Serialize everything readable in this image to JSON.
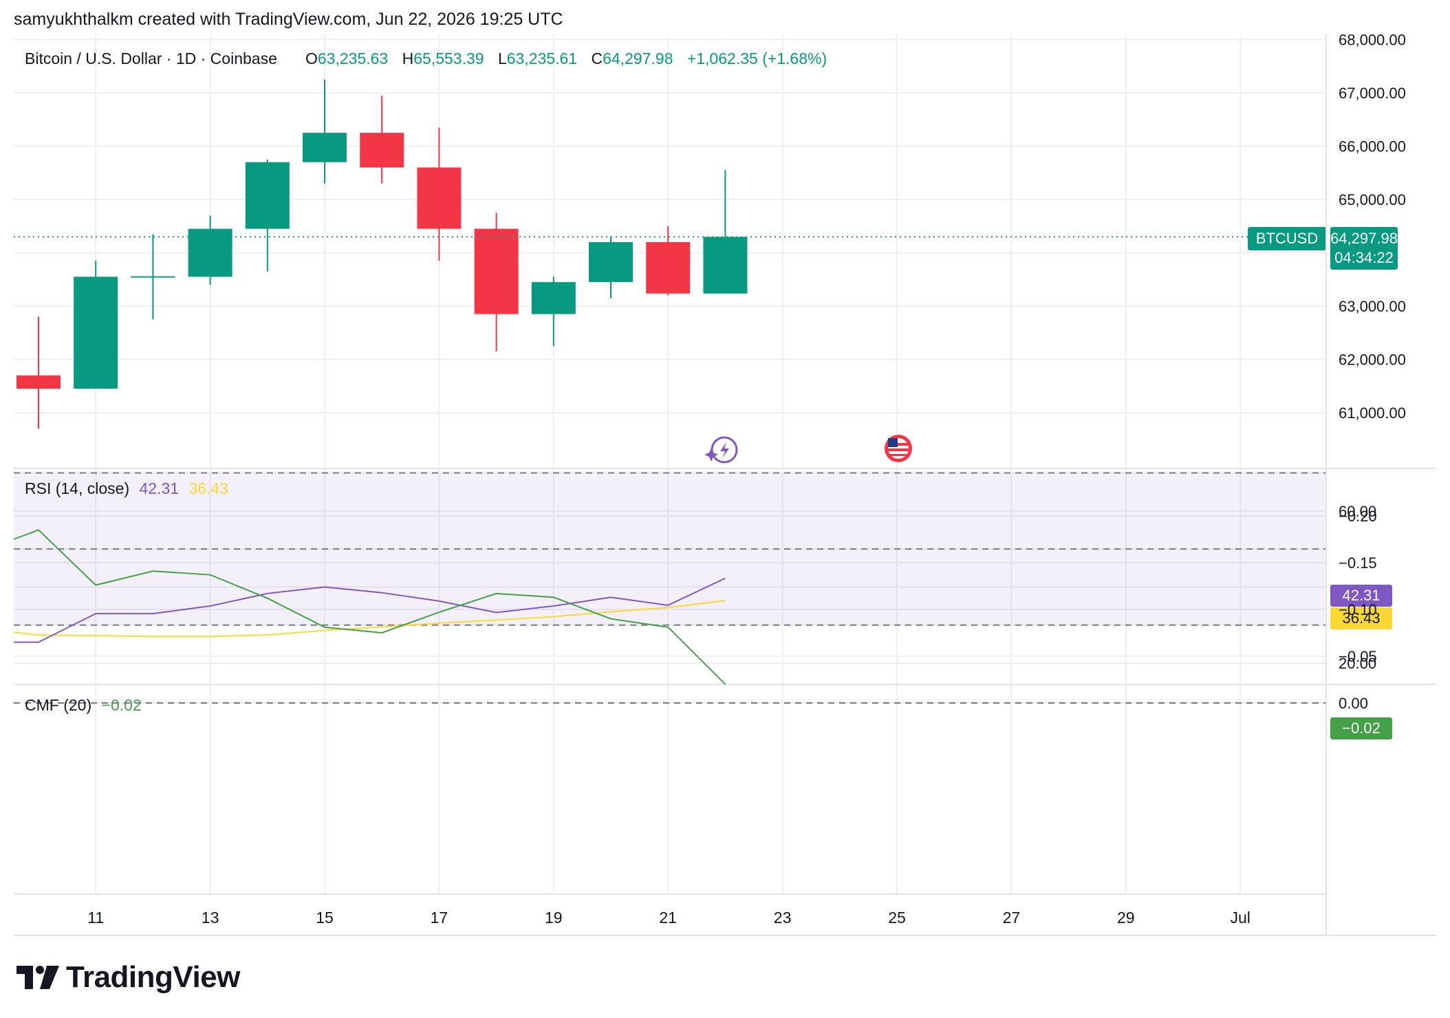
{
  "header": {
    "attribution": "samyukhthalkm created with TradingView.com, Jun 22, 2026 19:25 UTC"
  },
  "legend": {
    "symbol": "Bitcoin / U.S. Dollar · 1D · Coinbase",
    "o_label": "O",
    "o_value": "63,235.63",
    "h_label": "H",
    "h_value": "65,553.39",
    "l_label": "L",
    "l_value": "63,235.61",
    "c_label": "C",
    "c_value": "64,297.98",
    "change": "+1,062.35 (+1.68%)"
  },
  "price_tag": {
    "symbol": "BTCUSD",
    "price": "64,297.98",
    "countdown": "04:34:22"
  },
  "rsi_legend": {
    "name": "RSI (14, close)",
    "rsi": "42.31",
    "ma": "36.43"
  },
  "cmf_legend": {
    "name": "CMF (20)",
    "value": "−0.02"
  },
  "brand": {
    "name": "TradingView"
  },
  "colors": {
    "up": "#089981",
    "down": "#f23645",
    "rsi": "#7e57c2",
    "rsi_ma": "#fdd835",
    "cmf": "#43a047",
    "rsi_band": "#7e57c2",
    "grid": "#eeeff2",
    "text": "#131722"
  },
  "icons": [
    "tradingview-logo-icon",
    "economic-event-icon",
    "us-flag-icon"
  ],
  "chart_data": [
    {
      "type": "candlestick",
      "title": "Bitcoin / U.S. Dollar · 1D · Coinbase",
      "x_tick_labels": [
        "11",
        "13",
        "15",
        "17",
        "19",
        "21",
        "23",
        "25",
        "27",
        "29",
        "Jul"
      ],
      "y_tick_labels": [
        "61,000.00",
        "62,000.00",
        "63,000.00",
        "65,000.00",
        "66,000.00",
        "67,000.00",
        "68,000.00"
      ],
      "ylim": [
        60000,
        68000
      ],
      "current_price": 64297.98,
      "candles": [
        {
          "date": "Jun 10",
          "o": 61700,
          "h": 62800,
          "l": 60700,
          "c": 61450
        },
        {
          "date": "Jun 11",
          "o": 61450,
          "h": 63850,
          "l": 61450,
          "c": 63550
        },
        {
          "date": "Jun 12",
          "o": 63550,
          "h": 64350,
          "l": 62750,
          "c": 63560
        },
        {
          "date": "Jun 13",
          "o": 63550,
          "h": 64700,
          "l": 63400,
          "c": 64450
        },
        {
          "date": "Jun 14",
          "o": 64450,
          "h": 65750,
          "l": 63650,
          "c": 65700
        },
        {
          "date": "Jun 15",
          "o": 65700,
          "h": 67250,
          "l": 65300,
          "c": 66250
        },
        {
          "date": "Jun 16",
          "o": 66250,
          "h": 66950,
          "l": 65300,
          "c": 65600
        },
        {
          "date": "Jun 17",
          "o": 65600,
          "h": 66350,
          "l": 63850,
          "c": 64450
        },
        {
          "date": "Jun 18",
          "o": 64450,
          "h": 64750,
          "l": 62150,
          "c": 62850
        },
        {
          "date": "Jun 19",
          "o": 62850,
          "h": 63550,
          "l": 62250,
          "c": 63450
        },
        {
          "date": "Jun 20",
          "o": 63450,
          "h": 64300,
          "l": 63150,
          "c": 64200
        },
        {
          "date": "Jun 21",
          "o": 64200,
          "h": 64500,
          "l": 63200,
          "c": 63235.61
        },
        {
          "date": "Jun 22",
          "o": 63235.63,
          "h": 65553.39,
          "l": 63235.61,
          "c": 64297.98
        }
      ]
    },
    {
      "type": "line",
      "title": "RSI (14, close)",
      "y_tick_labels": [
        "60.00",
        "20.00"
      ],
      "ylim": [
        20,
        70
      ],
      "band_upper": 70,
      "band_mid": 50,
      "band_lower": 30,
      "series": [
        {
          "name": "RSI",
          "values": [
            25.5,
            33.0,
            33.0,
            35.0,
            38.3,
            40.0,
            38.5,
            36.3,
            33.3,
            35.0,
            37.3,
            35.2,
            42.31
          ]
        },
        {
          "name": "RSI MA",
          "values": [
            27.4,
            27.2,
            27.0,
            27.0,
            27.4,
            28.6,
            29.5,
            30.5,
            31.3,
            32.2,
            33.5,
            34.6,
            36.43
          ]
        }
      ]
    },
    {
      "type": "line",
      "title": "CMF (20)",
      "y_tick_labels": [
        "0.00",
        "−0.05",
        "−0.10",
        "−0.15",
        "−0.20"
      ],
      "ylim": [
        -0.2,
        0.0
      ],
      "zero_line": 0,
      "series": [
        {
          "name": "CMF",
          "values": [
            -0.185,
            -0.126,
            -0.141,
            -0.137,
            -0.112,
            -0.081,
            -0.075,
            -0.097,
            -0.117,
            -0.113,
            -0.09,
            -0.081,
            -0.02
          ]
        }
      ]
    }
  ]
}
